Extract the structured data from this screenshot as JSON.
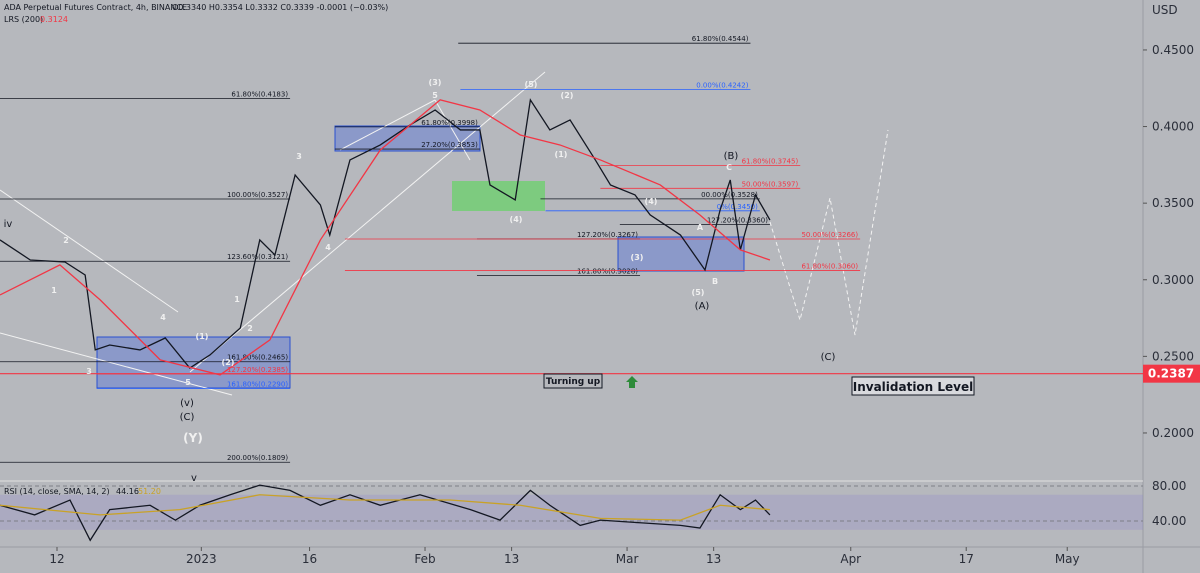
{
  "header": {
    "title": "ADA Perpetual Futures Contract, 4h, BINANCE",
    "ohlc": "O0.3340 H0.3354 L0.3332 C0.3339 -0.0001 (−0.03%)",
    "currency": "USD"
  },
  "wave_labels": [
    "iv",
    "2",
    "1",
    "3",
    "4",
    "(1)",
    "(2)",
    "5",
    "(v)",
    "(C)",
    "(Y)",
    "1",
    "2",
    "3",
    "4",
    "(3)",
    "5",
    "(4)",
    "(5)",
    "(2)",
    "(1)",
    "(4)",
    "(3)",
    "(5)",
    "(A)",
    "B",
    "A",
    "(B)",
    "C",
    "(C)",
    "v"
  ],
  "notes": {
    "turning": "Turning up"
  },
  "chart_data": [
    {
      "type": "line",
      "title": "ADA Perpetual Futures Contract, 4h, BINANCE",
      "xlim": [
        4.1,
        162.5
      ],
      "ylim": [
        0.1693,
        0.4826
      ],
      "yticks": [
        {
          "value": 0.45,
          "label": "0.4500"
        },
        {
          "value": 0.4,
          "label": "0.4000"
        },
        {
          "value": 0.35,
          "label": "0.3500"
        },
        {
          "value": 0.3,
          "label": "0.3000"
        },
        {
          "value": 0.25,
          "label": "0.2500"
        },
        {
          "value": 0.2,
          "label": "0.2000"
        }
      ],
      "series": [
        {
          "name": "ADA Perpetual Futures Contract, 4h, BINANCE",
          "color": "#131722",
          "x": [
            4.1,
            8.3,
            13.1,
            15.9,
            17.3,
            19.3,
            23.5,
            27,
            30.4,
            33.2,
            37.4,
            40.1,
            42.2,
            45,
            48.5,
            49.8,
            52.6,
            56.8,
            60.9,
            64.4,
            67.9,
            70.6,
            72,
            75.5,
            77.6,
            80.3,
            83.1,
            86.6,
            88.7,
            92.1,
            94.2,
            98.4,
            101.8,
            103.9,
            105.3,
            106.7,
            108.8,
            110.8
          ],
          "values": [
            0.326,
            0.3129,
            0.3116,
            0.3031,
            0.2542,
            0.2574,
            0.2542,
            0.262,
            0.2424,
            0.2509,
            0.2685,
            0.326,
            0.3162,
            0.3684,
            0.3488,
            0.3292,
            0.3782,
            0.388,
            0.401,
            0.4108,
            0.3978,
            0.3978,
            0.3619,
            0.3521,
            0.4174,
            0.3978,
            0.4043,
            0.3782,
            0.3619,
            0.3554,
            0.3423,
            0.3292,
            0.3064,
            0.3456,
            0.3651,
            0.3195,
            0.3554,
            0.339
          ]
        },
        {
          "name": "LRS (200)",
          "value_label": "0.3124",
          "color": "#f23645",
          "x": [
            4.1,
            12.4,
            18.0,
            26.3,
            34.6,
            41.5,
            48.5,
            56.8,
            65.1,
            70.6,
            76.2,
            81.7,
            87.3,
            95.6,
            101.1,
            106.7,
            110.8
          ],
          "values": [
            0.2901,
            0.3097,
            0.2868,
            0.2477,
            0.2379,
            0.2607,
            0.326,
            0.3847,
            0.4174,
            0.4108,
            0.3945,
            0.388,
            0.3782,
            0.3619,
            0.3423,
            0.3195,
            0.3129
          ]
        }
      ],
      "levels": [
        {
          "label": "61.80%(0.4544)",
          "value": 0.4544,
          "x": [
            67.6,
            108.1
          ],
          "color": "#131722"
        },
        {
          "label": "0.00%(0.4242)",
          "value": 0.4242,
          "x": [
            67.9,
            108.1
          ],
          "color": "#2962ff"
        },
        {
          "label": "61.80%(0.4183)",
          "value": 0.4183,
          "x": [
            4.1,
            44.3
          ],
          "color": "#131722"
        },
        {
          "label": "61.80%(0.3998)",
          "value": 0.3998,
          "x": [
            50.5,
            70.6
          ],
          "color": "#131722"
        },
        {
          "label": "27.20%(0.3853)",
          "value": 0.3853,
          "x": [
            50.5,
            70.6
          ],
          "color": "#131722"
        },
        {
          "label": "100.00%(0.3527)",
          "value": 0.3527,
          "x": [
            4.1,
            44.3
          ],
          "color": "#131722"
        },
        {
          "label": "123.60%(0.3121)",
          "value": 0.3121,
          "x": [
            4.1,
            44.3
          ],
          "color": "#131722"
        },
        {
          "label": "61.80%(0.3745)",
          "value": 0.3745,
          "x": [
            87.3,
            115
          ],
          "color": "#f23645"
        },
        {
          "label": "50.00%(0.3597)",
          "value": 0.3597,
          "x": [
            87.3,
            115
          ],
          "color": "#f23645"
        },
        {
          "label": "00.00%(0.3528)",
          "value": 0.3528,
          "x": [
            79,
            109.4
          ],
          "color": "#131722"
        },
        {
          "label": "0%(0.3450)",
          "value": 0.345,
          "x": [
            79.7,
            109.4
          ],
          "color": "#2962ff"
        },
        {
          "label": "127.20%(0.3360)",
          "value": 0.336,
          "x": [
            90,
            110.8
          ],
          "color": "#131722"
        },
        {
          "label": "127.20%(0.3267)",
          "value": 0.3267,
          "x": [
            70.2,
            92.8
          ],
          "color": "#131722"
        },
        {
          "label": "50.00%(0.3266)",
          "value": 0.3266,
          "x": [
            51.9,
            123.3
          ],
          "color": "#f23645"
        },
        {
          "label": "161.80%(0.3028)",
          "value": 0.3028,
          "x": [
            70.2,
            92.8
          ],
          "color": "#131722"
        },
        {
          "label": "61.80%(0.3060)",
          "value": 0.306,
          "x": [
            51.9,
            123.3
          ],
          "color": "#f23645"
        },
        {
          "label": "161.80%(0.2465)",
          "value": 0.2465,
          "x": [
            4.1,
            44.3
          ],
          "color": "#131722"
        },
        {
          "label": "127.20%(0.2385)",
          "value": 0.2385,
          "x": [
            17.5,
            44.3
          ],
          "color": "#f23645"
        },
        {
          "label": "161.80%(0.2290)",
          "value": 0.229,
          "x": [
            17.5,
            44.3
          ],
          "color": "#2962ff"
        },
        {
          "label": "200.00%(0.1809)",
          "value": 0.1809,
          "x": [
            4.1,
            44.3
          ],
          "color": "#131722"
        }
      ],
      "invalidation": {
        "label": "Invalidation Level",
        "value": 0.2387,
        "color": "#f23645"
      }
    },
    {
      "type": "line",
      "title": "RSI (14, close, SMA, 14, 2)",
      "xlim": [
        4.1,
        162.5
      ],
      "ylim": [
        12.6,
        84.6
      ],
      "yticks": [
        {
          "value": 80,
          "label": "80.00"
        },
        {
          "value": 40,
          "label": "40.00"
        }
      ],
      "xticks": [
        {
          "value": 12,
          "label": "12"
        },
        {
          "value": 32,
          "label": "2023"
        },
        {
          "value": 47,
          "label": "16"
        },
        {
          "value": 63,
          "label": "Feb"
        },
        {
          "value": 75,
          "label": "13"
        },
        {
          "value": 91,
          "label": "Mar"
        },
        {
          "value": 103,
          "label": "13"
        },
        {
          "value": 122,
          "label": "Apr"
        },
        {
          "value": 138,
          "label": "17"
        },
        {
          "value": 152,
          "label": "May"
        }
      ],
      "series": [
        {
          "name": "RSI",
          "value_label": "44.16",
          "color": "#131722",
          "x": [
            4.1,
            8.9,
            13.8,
            16.6,
            19.3,
            24.9,
            28.4,
            31.8,
            36,
            40.1,
            44.3,
            48.5,
            52.6,
            56.8,
            62.3,
            69.3,
            73.4,
            77.6,
            80.3,
            84.5,
            87.3,
            92.8,
            98.4,
            101.1,
            103.9,
            106.7,
            108.8,
            110.8
          ],
          "values": [
            58,
            47,
            64,
            18,
            53,
            58,
            41,
            58,
            70,
            81,
            75,
            58,
            70,
            58,
            70,
            53,
            41,
            75,
            58,
            35,
            41,
            38,
            35,
            32,
            70,
            53,
            64,
            47
          ]
        },
        {
          "name": "SMA",
          "value_label": "51.20",
          "color": "#c9a227",
          "x": [
            4.1,
            17.96,
            29,
            40.1,
            52.6,
            66.5,
            76.2,
            87.3,
            98.4,
            103.9,
            110.8
          ],
          "values": [
            58,
            47,
            53,
            70,
            64,
            64,
            58,
            43,
            41,
            58,
            53
          ]
        }
      ]
    }
  ]
}
